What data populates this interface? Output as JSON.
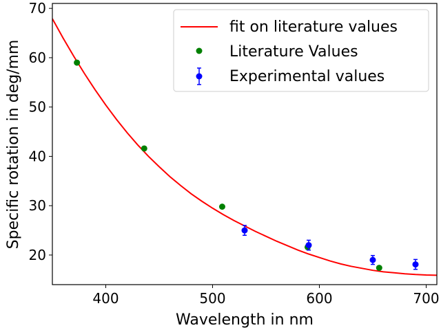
{
  "chart_data": {
    "type": "scatter",
    "title": "",
    "xlabel": "Wavelength in nm",
    "ylabel": "Specific rotation in deg/mm",
    "xlim": [
      350,
      710
    ],
    "ylim": [
      14,
      71
    ],
    "x_ticks": [
      400,
      500,
      600,
      700
    ],
    "y_ticks": [
      20,
      30,
      40,
      50,
      60,
      70
    ],
    "grid": false,
    "legend_position": "top-right",
    "series": [
      {
        "name": "fit on literature values",
        "kind": "line",
        "color": "#ff0000",
        "x": [
          350,
          360,
          370,
          380,
          390,
          400,
          410,
          420,
          430,
          440,
          450,
          460,
          470,
          480,
          490,
          500,
          510,
          520,
          530,
          540,
          550,
          560,
          570,
          580,
          590,
          600,
          610,
          620,
          630,
          640,
          650,
          660,
          670,
          680,
          690,
          700,
          710
        ],
        "y": [
          67.9,
          64.0,
          60.3,
          56.8,
          53.5,
          50.4,
          47.5,
          44.8,
          42.3,
          40.0,
          37.9,
          35.9,
          34.1,
          32.4,
          30.9,
          29.5,
          28.2,
          27.0,
          25.9,
          24.8,
          23.8,
          22.8,
          21.9,
          21.0,
          20.2,
          19.5,
          18.8,
          18.2,
          17.7,
          17.3,
          16.9,
          16.6,
          16.4,
          16.2,
          16.05,
          15.95,
          15.9
        ]
      },
      {
        "name": "Literature Values",
        "kind": "points",
        "color": "#008000",
        "x": [
          373,
          436,
          509,
          589,
          656
        ],
        "y": [
          59.0,
          41.6,
          29.8,
          21.6,
          17.4
        ]
      },
      {
        "name": "Experimental values",
        "kind": "errorbar",
        "color": "#0000ff",
        "x": [
          530,
          590,
          650,
          690
        ],
        "y": [
          25.0,
          22.0,
          19.0,
          18.1
        ],
        "yerr": [
          1.0,
          1.0,
          0.9,
          1.0
        ]
      }
    ]
  }
}
